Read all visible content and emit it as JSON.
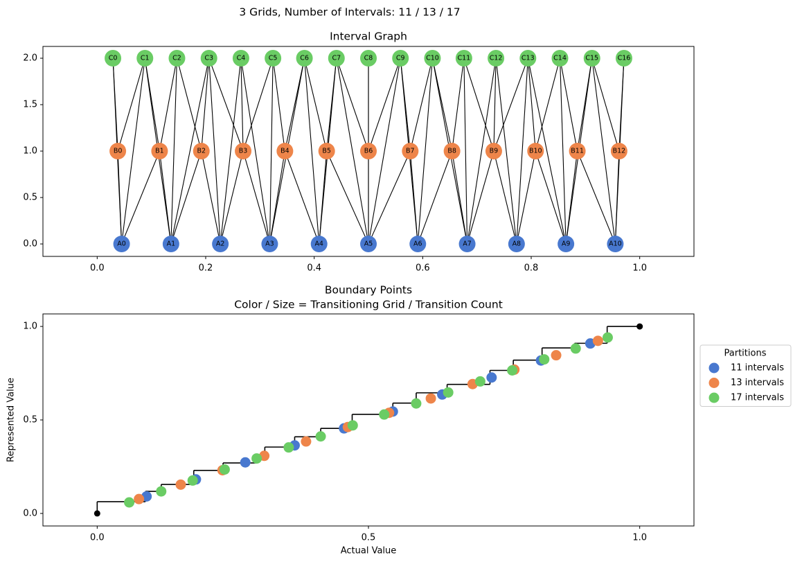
{
  "title": "3 Grids, Number of Intervals: 11 / 13 / 17",
  "chart_data": [
    {
      "type": "network",
      "title": "Interval Graph",
      "xlim": [
        -0.1,
        1.1
      ],
      "ylim": [
        -0.134,
        2.127
      ],
      "xticks": [
        {
          "value": 0,
          "label": "0.0"
        },
        {
          "value": 0.2,
          "label": "0.2"
        },
        {
          "value": 0.4,
          "label": "0.4"
        },
        {
          "value": 0.6,
          "label": "0.6"
        },
        {
          "value": 0.8,
          "label": "0.8"
        },
        {
          "value": 1,
          "label": "1.0"
        }
      ],
      "yticks": [
        {
          "value": 0,
          "label": "0.0"
        },
        {
          "value": 0.5,
          "label": "0.5"
        },
        {
          "value": 1,
          "label": "1.0"
        },
        {
          "value": 1.5,
          "label": "1.5"
        },
        {
          "value": 2,
          "label": "2.0"
        }
      ],
      "groups": [
        {
          "color": "#4878cf",
          "y": 0,
          "labels": [
            "A0",
            "A1",
            "A2",
            "A3",
            "A4",
            "A5",
            "A6",
            "A7",
            "A8",
            "A9",
            "A10"
          ],
          "x": [
            0.045,
            0.136,
            0.227,
            0.318,
            0.409,
            0.5,
            0.591,
            0.682,
            0.773,
            0.864,
            0.955
          ]
        },
        {
          "color": "#ee854a",
          "y": 1,
          "labels": [
            "B0",
            "B1",
            "B2",
            "B3",
            "B4",
            "B5",
            "B6",
            "B7",
            "B8",
            "B9",
            "B10",
            "B11",
            "B12"
          ],
          "x": [
            0.038,
            0.115,
            0.192,
            0.269,
            0.346,
            0.423,
            0.5,
            0.577,
            0.654,
            0.731,
            0.808,
            0.885,
            0.962
          ]
        },
        {
          "color": "#6acc64",
          "y": 2,
          "labels": [
            "C0",
            "C1",
            "C2",
            "C3",
            "C4",
            "C5",
            "C6",
            "C7",
            "C8",
            "C9",
            "C10",
            "C11",
            "C12",
            "C13",
            "C14",
            "C15",
            "C16"
          ],
          "x": [
            0.029,
            0.088,
            0.147,
            0.206,
            0.265,
            0.324,
            0.382,
            0.441,
            0.5,
            0.559,
            0.618,
            0.676,
            0.735,
            0.794,
            0.853,
            0.912,
            0.971
          ]
        }
      ],
      "edges": [
        [
          "A0",
          "B0"
        ],
        [
          "A0",
          "B1"
        ],
        [
          "A1",
          "B1"
        ],
        [
          "A1",
          "B2"
        ],
        [
          "A2",
          "B2"
        ],
        [
          "A2",
          "B3"
        ],
        [
          "A3",
          "B3"
        ],
        [
          "A3",
          "B4"
        ],
        [
          "A4",
          "B4"
        ],
        [
          "A4",
          "B5"
        ],
        [
          "A5",
          "B5"
        ],
        [
          "A5",
          "B6"
        ],
        [
          "A5",
          "B7"
        ],
        [
          "A6",
          "B7"
        ],
        [
          "A6",
          "B8"
        ],
        [
          "A7",
          "B8"
        ],
        [
          "A7",
          "B9"
        ],
        [
          "A8",
          "B9"
        ],
        [
          "A8",
          "B10"
        ],
        [
          "A9",
          "B10"
        ],
        [
          "A9",
          "B11"
        ],
        [
          "A10",
          "B11"
        ],
        [
          "A10",
          "B12"
        ],
        [
          "B0",
          "C0"
        ],
        [
          "B0",
          "C1"
        ],
        [
          "B1",
          "C1"
        ],
        [
          "B1",
          "C2"
        ],
        [
          "B2",
          "C2"
        ],
        [
          "B2",
          "C3"
        ],
        [
          "B3",
          "C3"
        ],
        [
          "B3",
          "C4"
        ],
        [
          "B3",
          "C5"
        ],
        [
          "B4",
          "C5"
        ],
        [
          "B4",
          "C6"
        ],
        [
          "B5",
          "C6"
        ],
        [
          "B5",
          "C7"
        ],
        [
          "B6",
          "C7"
        ],
        [
          "B6",
          "C8"
        ],
        [
          "B6",
          "C9"
        ],
        [
          "B7",
          "C9"
        ],
        [
          "B7",
          "C10"
        ],
        [
          "B8",
          "C10"
        ],
        [
          "B8",
          "C11"
        ],
        [
          "B9",
          "C11"
        ],
        [
          "B9",
          "C12"
        ],
        [
          "B9",
          "C13"
        ],
        [
          "B10",
          "C13"
        ],
        [
          "B10",
          "C14"
        ],
        [
          "B11",
          "C14"
        ],
        [
          "B11",
          "C15"
        ],
        [
          "B12",
          "C15"
        ],
        [
          "B12",
          "C16"
        ],
        [
          "A0",
          "C0"
        ],
        [
          "A0",
          "C1"
        ],
        [
          "A1",
          "C1"
        ],
        [
          "A1",
          "C2"
        ],
        [
          "A1",
          "C3"
        ],
        [
          "A2",
          "C3"
        ],
        [
          "A2",
          "C4"
        ],
        [
          "A3",
          "C4"
        ],
        [
          "A3",
          "C5"
        ],
        [
          "A3",
          "C6"
        ],
        [
          "A4",
          "C6"
        ],
        [
          "A4",
          "C7"
        ],
        [
          "A5",
          "C7"
        ],
        [
          "A5",
          "C8"
        ],
        [
          "A5",
          "C9"
        ],
        [
          "A6",
          "C9"
        ],
        [
          "A6",
          "C10"
        ],
        [
          "A7",
          "C10"
        ],
        [
          "A7",
          "C11"
        ],
        [
          "A7",
          "C12"
        ],
        [
          "A8",
          "C12"
        ],
        [
          "A8",
          "C13"
        ],
        [
          "A9",
          "C13"
        ],
        [
          "A9",
          "C14"
        ],
        [
          "A9",
          "C15"
        ],
        [
          "A10",
          "C15"
        ],
        [
          "A10",
          "C16"
        ]
      ]
    },
    {
      "type": "step_scatter",
      "title": "Boundary Points",
      "subtitle": "Color / Size = Transitioning Grid / Transition Count",
      "xlabel": "Actual Value",
      "ylabel": "Represented Value",
      "xlim": [
        -0.1,
        1.1
      ],
      "ylim": [
        -0.067,
        1.067
      ],
      "xticks": [
        {
          "value": 0,
          "label": "0.0"
        },
        {
          "value": 0.5,
          "label": "0.5"
        },
        {
          "value": 1,
          "label": "1.0"
        }
      ],
      "yticks": [
        {
          "value": 0,
          "label": "0.0"
        },
        {
          "value": 0.5,
          "label": "0.5"
        },
        {
          "value": 1,
          "label": "1.0"
        }
      ],
      "step": {
        "color": "#000000",
        "x": [
          0,
          0,
          0.089,
          0.118,
          0.178,
          0.232,
          0.294,
          0.309,
          0.364,
          0.412,
          0.47,
          0.545,
          0.588,
          0.645,
          0.724,
          0.767,
          0.82,
          0.88,
          0.94,
          1.0
        ],
        "y": [
          0,
          0.063,
          0.118,
          0.155,
          0.23,
          0.27,
          0.31,
          0.355,
          0.41,
          0.455,
          0.53,
          0.59,
          0.645,
          0.69,
          0.765,
          0.82,
          0.885,
          0.91,
          1.0,
          1.0
        ]
      },
      "endpoints": {
        "color": "#000000",
        "x": [
          0,
          1
        ],
        "y": [
          0,
          1
        ]
      },
      "legend_title": "Partitions",
      "legend": "outside-right",
      "series": [
        {
          "name": "11 intervals",
          "color": "#4878cf",
          "x": [
            0.091,
            0.182,
            0.273,
            0.364,
            0.455,
            0.545,
            0.636,
            0.727,
            0.818,
            0.909
          ],
          "y": [
            0.091,
            0.182,
            0.273,
            0.364,
            0.455,
            0.545,
            0.636,
            0.727,
            0.818,
            0.909
          ]
        },
        {
          "name": "13 intervals",
          "color": "#ee854a",
          "x": [
            0.077,
            0.154,
            0.231,
            0.308,
            0.385,
            0.462,
            0.538,
            0.615,
            0.692,
            0.769,
            0.846,
            0.923
          ],
          "y": [
            0.077,
            0.154,
            0.231,
            0.308,
            0.385,
            0.462,
            0.538,
            0.615,
            0.692,
            0.769,
            0.846,
            0.923
          ]
        },
        {
          "name": "17 intervals",
          "color": "#6acc64",
          "x": [
            0.059,
            0.118,
            0.176,
            0.235,
            0.294,
            0.353,
            0.412,
            0.471,
            0.529,
            0.588,
            0.647,
            0.706,
            0.765,
            0.824,
            0.882,
            0.941
          ],
          "y": [
            0.059,
            0.118,
            0.176,
            0.235,
            0.294,
            0.353,
            0.412,
            0.471,
            0.529,
            0.588,
            0.647,
            0.706,
            0.765,
            0.824,
            0.882,
            0.941
          ]
        }
      ]
    }
  ]
}
